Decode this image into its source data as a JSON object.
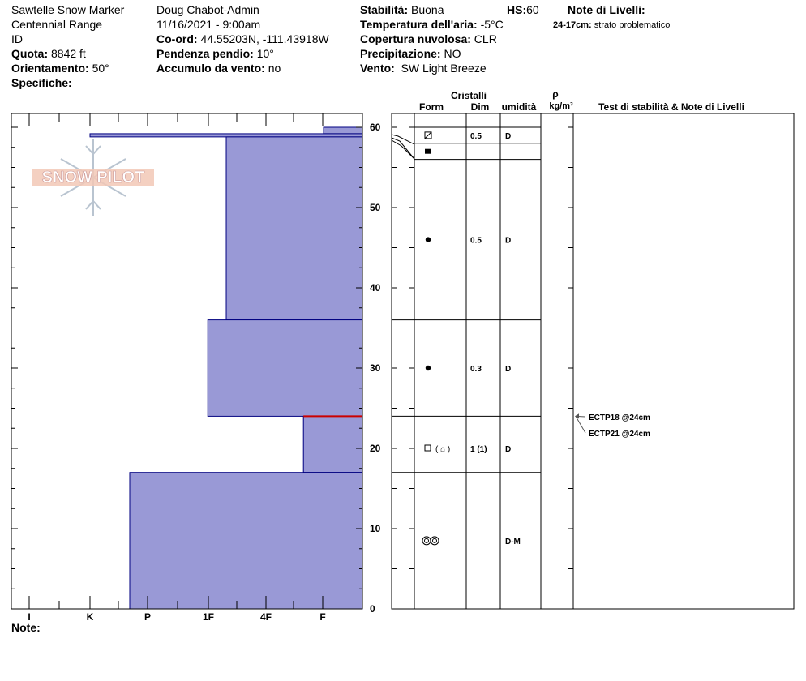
{
  "header": {
    "location": "Sawtelle Snow Marker",
    "range": "Centennial Range",
    "state": "ID",
    "elevation": {
      "label": "Quota:",
      "value": "8842 ft"
    },
    "aspect": {
      "label": "Orientamento:",
      "value": "50°"
    },
    "specifics": {
      "label": "Specifiche:"
    },
    "observer": "Doug Chabot-Admin",
    "datetime": "11/16/2021 - 9:00am",
    "coords": {
      "label": "Co-ord:",
      "value": "44.55203N, -111.43918W"
    },
    "slope": {
      "label": "Pendenza pendio:",
      "value": "10°"
    },
    "wind_loading": {
      "label": "Accumulo da vento:",
      "value": "no"
    },
    "stability": {
      "label": "Stabilità:",
      "value": "Buona"
    },
    "hs": {
      "label": "HS:",
      "value": "60"
    },
    "air_temp": {
      "label": "Temperatura dell'aria:",
      "value": "-5°C"
    },
    "cloud": {
      "label": "Copertura nuvolosa:",
      "value": "CLR"
    },
    "precip": {
      "label": "Precipitazione:",
      "value": "NO"
    },
    "wind": {
      "label": "Vento:",
      "value": "SW Light Breeze"
    },
    "layer_notes": {
      "label": "Note di Livelli:",
      "range": "24-17cm:",
      "text": "strato problematico"
    }
  },
  "logo": {
    "text": "SNOW PILOT"
  },
  "columns": {
    "crystals": "Cristalli",
    "form": "Form",
    "size": "Dim",
    "moisture": "umidità",
    "rho": "ρ",
    "density_unit": "kg/m³",
    "tests": "Test di stabilità & Note di Livelli"
  },
  "footer": {
    "notes_label": "Note:"
  },
  "colors": {
    "layer_fill": "#9999d6",
    "layer_stroke": "#000080",
    "problem_layer": "#cc0000"
  },
  "chart_data": {
    "type": "snow_profile",
    "y_axis": {
      "min": 0,
      "max": 60,
      "ticks": [
        0,
        10,
        20,
        30,
        40,
        50,
        60
      ],
      "unit": "cm"
    },
    "hardness_scale": [
      "I",
      "K",
      "P",
      "1F",
      "4F",
      "F"
    ],
    "hardness_axis_order": "F-left-to-I-right (reversed display as drawn)",
    "layers": [
      {
        "top": 60,
        "bottom": 59.2,
        "hardness_code": 0.2
      },
      {
        "top": 59.2,
        "bottom": 58.8,
        "hardness_code": 4.9
      },
      {
        "top": 58.8,
        "bottom": 36,
        "hardness_code": 2.3
      },
      {
        "top": 36,
        "bottom": 24,
        "hardness_code": 2.63
      },
      {
        "top": 24,
        "bottom": 17,
        "hardness_code": 1.0
      },
      {
        "top": 17,
        "bottom": 0,
        "hardness_code": 4.0
      }
    ],
    "problem_layer_depth": 24,
    "crystal_layers": [
      {
        "top": 60,
        "bottom": 58,
        "form": "decomposing",
        "size": "0.5",
        "moisture": "D"
      },
      {
        "top": 58,
        "bottom": 56,
        "form": "graupel",
        "size": "",
        "moisture": ""
      },
      {
        "top": 56,
        "bottom": 36,
        "form": "rounded",
        "size": "0.5",
        "moisture": "D"
      },
      {
        "top": 36,
        "bottom": 24,
        "form": "rounded",
        "size": "0.3",
        "moisture": "D"
      },
      {
        "top": 24,
        "bottom": 17,
        "form": "faceted",
        "form_secondary": "(faceted-rounding)",
        "size": "1 (1)",
        "moisture": "D"
      },
      {
        "top": 17,
        "bottom": 0,
        "form": "melt-freeze",
        "size": "",
        "moisture": "D-M"
      }
    ],
    "stability_tests": [
      {
        "label": "ECTP18 @24cm",
        "depth": 24
      },
      {
        "label": "ECTP21 @24cm",
        "depth": 24
      }
    ]
  }
}
